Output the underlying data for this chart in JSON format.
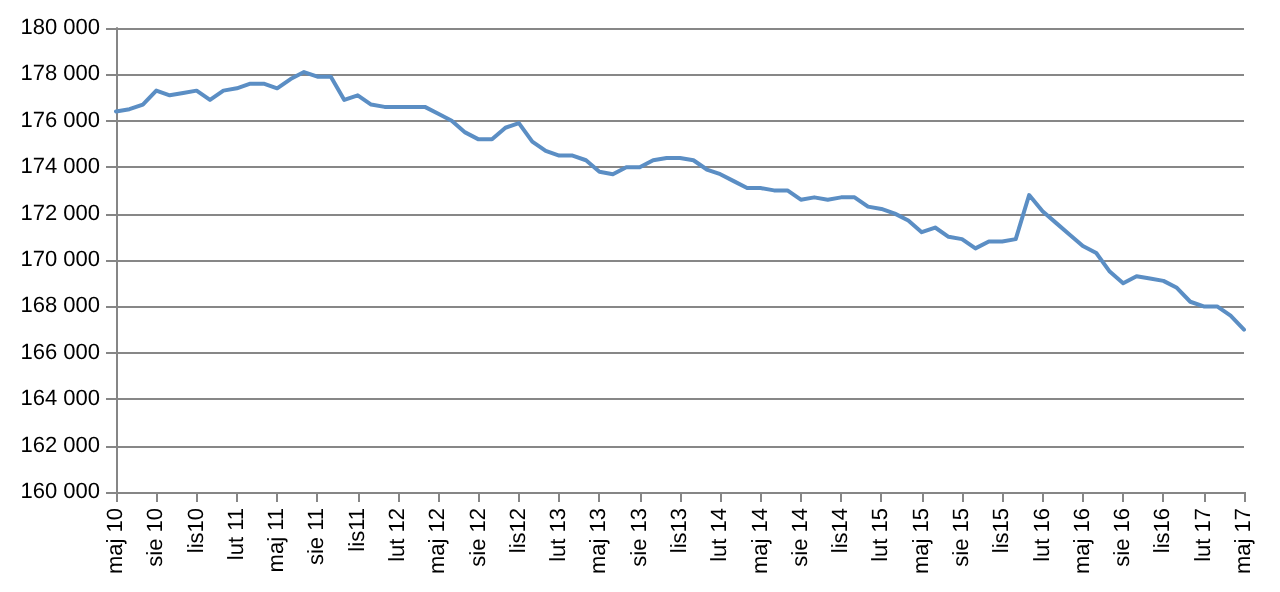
{
  "chart_data": {
    "type": "line",
    "categories": [
      "maj 10",
      null,
      null,
      "sie 10",
      null,
      null,
      "lis10",
      null,
      null,
      "lut 11",
      null,
      null,
      "maj 11",
      null,
      null,
      "sie 11",
      null,
      null,
      "lis11",
      null,
      null,
      "lut 12",
      null,
      null,
      "maj 12",
      null,
      null,
      "sie 12",
      null,
      null,
      "lis12",
      null,
      null,
      "lut 13",
      null,
      null,
      "maj 13",
      null,
      null,
      "sie 13",
      null,
      null,
      "lis13",
      null,
      null,
      "lut 14",
      null,
      null,
      "maj 14",
      null,
      null,
      "sie 14",
      null,
      null,
      "lis14",
      null,
      null,
      "lut 15",
      null,
      null,
      "maj 15",
      null,
      null,
      "sie 15",
      null,
      null,
      "lis15",
      null,
      null,
      "lut 16",
      null,
      null,
      "maj 16",
      null,
      null,
      "sie 16",
      null,
      null,
      "lis16",
      null,
      null,
      "lut 17",
      null,
      null,
      "maj 17"
    ],
    "series": [
      {
        "color": "#5b8ec4",
        "values": [
          176400,
          176500,
          176700,
          177300,
          177100,
          177200,
          177300,
          176900,
          177300,
          177400,
          177600,
          177600,
          177400,
          177800,
          178100,
          177900,
          177900,
          176900,
          177100,
          176700,
          176600,
          176600,
          176600,
          176600,
          176300,
          176000,
          175500,
          175200,
          175200,
          175700,
          175900,
          175100,
          174700,
          174500,
          174500,
          174300,
          173800,
          173700,
          174000,
          174000,
          174300,
          174400,
          174400,
          174300,
          173900,
          173700,
          173400,
          173100,
          173100,
          173000,
          173000,
          172600,
          172700,
          172600,
          172700,
          172700,
          172300,
          172200,
          172000,
          171700,
          171200,
          171400,
          171000,
          170900,
          170500,
          170800,
          170800,
          170900,
          172800,
          172100,
          171600,
          171100,
          170600,
          170300,
          169500,
          169000,
          169300,
          169200,
          169100,
          168800,
          168200,
          168000,
          168000,
          167600,
          167000
        ]
      }
    ],
    "ylim": [
      160000,
      180000
    ],
    "yticks": [
      {
        "value": 160000,
        "label": "160 000"
      },
      {
        "value": 162000,
        "label": "162 000"
      },
      {
        "value": 164000,
        "label": "164 000"
      },
      {
        "value": 166000,
        "label": "166 000"
      },
      {
        "value": 168000,
        "label": "168 000"
      },
      {
        "value": 170000,
        "label": "170 000"
      },
      {
        "value": 172000,
        "label": "172 000"
      },
      {
        "value": 174000,
        "label": "174 000"
      },
      {
        "value": 176000,
        "label": "176 000"
      },
      {
        "value": 178000,
        "label": "178 000"
      },
      {
        "value": 180000,
        "label": "180 000"
      }
    ],
    "grid": "y",
    "marker": "none",
    "line_style": "solid"
  }
}
